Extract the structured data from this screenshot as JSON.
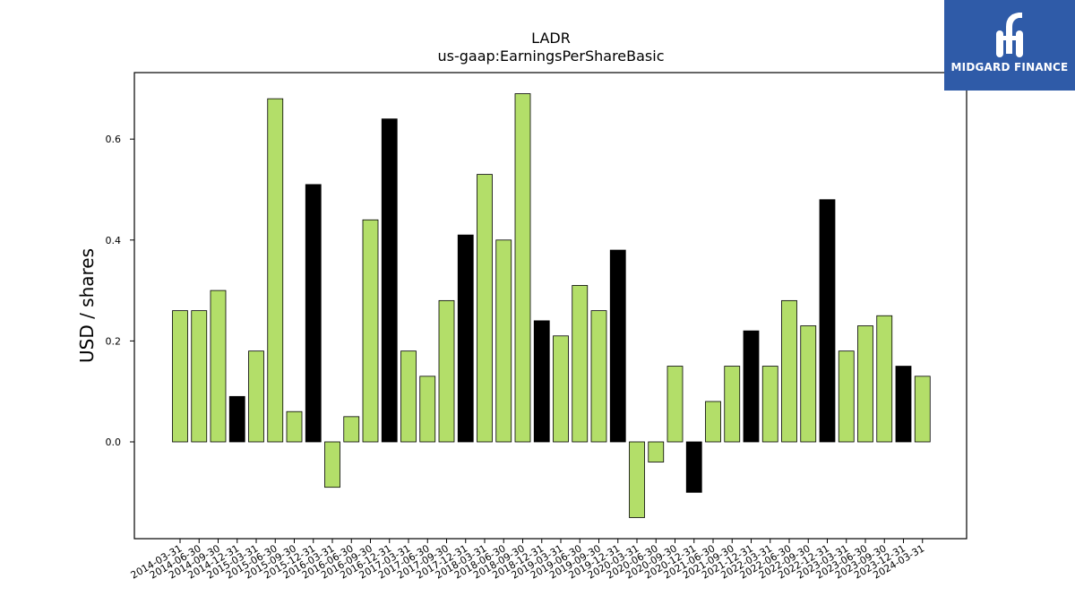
{
  "chart_data": {
    "type": "bar",
    "title": "LADR",
    "subtitle": "us-gaap:EarningsPerShareBasic",
    "xlabel": "",
    "ylabel": "USD / shares",
    "ylim": [
      -0.19,
      0.73
    ],
    "yticks": [
      "0.0",
      "0.2",
      "0.4",
      "0.6"
    ],
    "ytick_values": [
      0.0,
      0.2,
      0.4,
      0.6
    ],
    "grid": false,
    "colors": {
      "normal": "#b3de69",
      "q4": "#000000",
      "edge": "#000000"
    },
    "categories": [
      "2014-03-31",
      "2014-06-30",
      "2014-09-30",
      "2014-12-31",
      "2015-03-31",
      "2015-06-30",
      "2015-09-30",
      "2015-12-31",
      "2016-03-31",
      "2016-06-30",
      "2016-09-30",
      "2016-12-31",
      "2017-03-31",
      "2017-06-30",
      "2017-09-30",
      "2017-12-31",
      "2018-03-31",
      "2018-06-30",
      "2018-09-30",
      "2018-12-31",
      "2019-03-31",
      "2019-06-30",
      "2019-09-30",
      "2019-12-31",
      "2020-03-31",
      "2020-06-30",
      "2020-09-30",
      "2020-12-31",
      "2021-06-30",
      "2021-09-30",
      "2021-12-31",
      "2022-03-31",
      "2022-06-30",
      "2022-09-30",
      "2022-12-31",
      "2023-03-31",
      "2023-06-30",
      "2023-09-30",
      "2023-12-31",
      "2024-03-31"
    ],
    "values": [
      0.26,
      0.26,
      0.3,
      0.09,
      0.18,
      0.68,
      0.06,
      0.51,
      -0.09,
      0.05,
      0.44,
      0.64,
      0.18,
      0.13,
      0.28,
      0.41,
      0.53,
      0.4,
      0.69,
      0.24,
      0.21,
      0.31,
      0.26,
      0.38,
      -0.15,
      -0.04,
      0.15,
      -0.1,
      0.08,
      0.15,
      0.22,
      0.15,
      0.28,
      0.23,
      0.48,
      0.18,
      0.23,
      0.25,
      0.15,
      0.13
    ]
  },
  "logo": {
    "text": "MIDGARD FINANCE",
    "icon": "midgard-logo-icon",
    "color": "#2f5ba8"
  }
}
